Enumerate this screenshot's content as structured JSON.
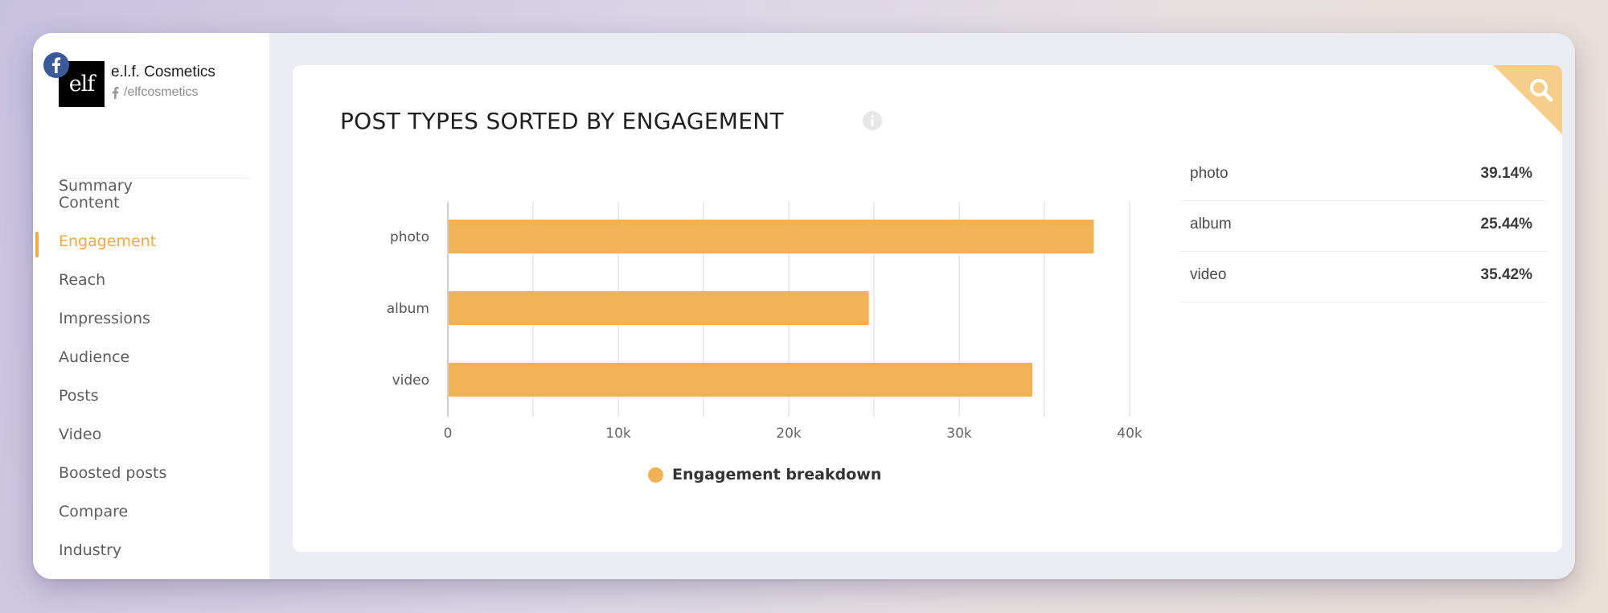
{
  "account": {
    "network_icon": "facebook-icon",
    "logo_text": "elf",
    "name": "e.l.f. Cosmetics",
    "handle": "/elfcosmetics"
  },
  "sidebar": {
    "items": [
      {
        "label": "Summary",
        "active": false
      },
      {
        "label": "Content",
        "active": false
      },
      {
        "label": "Engagement",
        "active": true
      },
      {
        "label": "Reach",
        "active": false
      },
      {
        "label": "Impressions",
        "active": false
      },
      {
        "label": "Audience",
        "active": false
      },
      {
        "label": "Posts",
        "active": false
      },
      {
        "label": "Video",
        "active": false
      },
      {
        "label": "Boosted posts",
        "active": false
      },
      {
        "label": "Compare",
        "active": false
      },
      {
        "label": "Industry",
        "active": false
      }
    ]
  },
  "card": {
    "title": "POST TYPES SORTED BY ENGAGEMENT",
    "info_icon": "info-icon",
    "corner_icon": "search-icon"
  },
  "chart_data": {
    "type": "bar",
    "orientation": "horizontal",
    "categories": [
      "photo",
      "album",
      "video"
    ],
    "series": [
      {
        "name": "Engagement breakdown",
        "values": [
          37900,
          24700,
          34300
        ],
        "color": "#f0b254"
      }
    ],
    "xlim": [
      0,
      40000
    ],
    "x_ticks": [
      0,
      10000,
      20000,
      30000,
      40000
    ],
    "x_tick_labels": [
      "0",
      "10k",
      "20k",
      "30k",
      "40k"
    ],
    "grid": true,
    "legend_placement": "bottom"
  },
  "breakdown": [
    {
      "label": "photo",
      "value": "39.14%"
    },
    {
      "label": "album",
      "value": "25.44%"
    },
    {
      "label": "video",
      "value": "35.42%"
    }
  ],
  "colors": {
    "accent": "#f0a943",
    "bar": "#f0b254",
    "facebook": "#3b5998",
    "corner": "#f7cd8a"
  }
}
